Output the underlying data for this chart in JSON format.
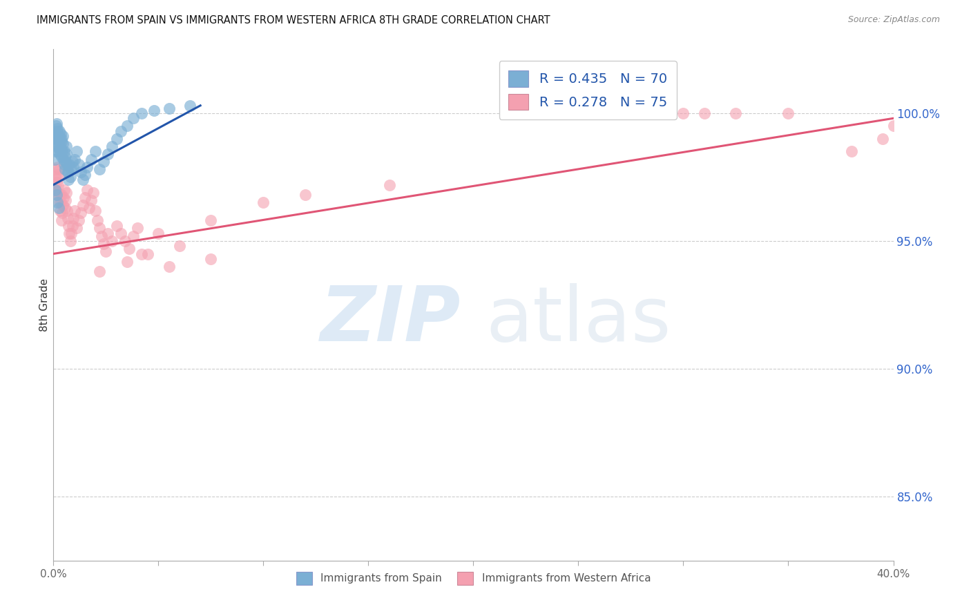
{
  "title": "IMMIGRANTS FROM SPAIN VS IMMIGRANTS FROM WESTERN AFRICA 8TH GRADE CORRELATION CHART",
  "source": "Source: ZipAtlas.com",
  "ylabel": "8th Grade",
  "ytick_values": [
    85.0,
    90.0,
    95.0,
    100.0
  ],
  "xlim_min": 0.0,
  "xlim_max": 40.0,
  "ylim_min": 82.5,
  "ylim_max": 102.5,
  "legend_blue_label": "R = 0.435   N = 70",
  "legend_pink_label": "R = 0.278   N = 75",
  "legend_bottom_blue": "Immigrants from Spain",
  "legend_bottom_pink": "Immigrants from Western Africa",
  "blue_color": "#7BAFD4",
  "pink_color": "#F4A0B0",
  "blue_line_color": "#2255AA",
  "pink_line_color": "#E05575",
  "ytick_color": "#3366CC",
  "blue_line_x0": 0.0,
  "blue_line_x1": 7.0,
  "blue_line_y0": 97.2,
  "blue_line_y1": 100.3,
  "pink_line_x0": 0.0,
  "pink_line_x1": 40.0,
  "pink_line_y0": 94.5,
  "pink_line_y1": 99.8,
  "blue_scatter_x": [
    0.05,
    0.08,
    0.1,
    0.12,
    0.13,
    0.15,
    0.15,
    0.17,
    0.18,
    0.2,
    0.2,
    0.22,
    0.23,
    0.25,
    0.27,
    0.28,
    0.3,
    0.3,
    0.32,
    0.33,
    0.35,
    0.37,
    0.38,
    0.4,
    0.4,
    0.42,
    0.45,
    0.45,
    0.48,
    0.5,
    0.52,
    0.55,
    0.55,
    0.58,
    0.6,
    0.62,
    0.65,
    0.68,
    0.7,
    0.72,
    0.75,
    0.8,
    0.85,
    0.9,
    0.95,
    1.0,
    1.1,
    1.2,
    1.3,
    1.4,
    1.5,
    1.6,
    1.8,
    2.0,
    2.2,
    2.4,
    2.6,
    2.8,
    3.0,
    3.2,
    3.5,
    3.8,
    4.2,
    4.8,
    5.5,
    6.5,
    0.1,
    0.15,
    0.2,
    0.25
  ],
  "blue_scatter_y": [
    98.2,
    98.5,
    99.0,
    99.2,
    99.5,
    99.6,
    99.3,
    99.1,
    98.9,
    99.4,
    98.7,
    99.0,
    98.5,
    98.8,
    99.1,
    99.3,
    98.6,
    99.0,
    98.4,
    98.7,
    99.2,
    98.9,
    98.6,
    98.3,
    99.0,
    98.5,
    98.8,
    99.1,
    98.2,
    98.5,
    98.0,
    98.3,
    97.8,
    98.1,
    98.4,
    98.7,
    98.0,
    97.7,
    97.4,
    97.7,
    98.0,
    97.5,
    97.8,
    98.1,
    97.9,
    98.2,
    98.5,
    98.0,
    97.7,
    97.4,
    97.6,
    97.9,
    98.2,
    98.5,
    97.8,
    98.1,
    98.4,
    98.7,
    99.0,
    99.3,
    99.5,
    99.8,
    100.0,
    100.1,
    100.2,
    100.3,
    97.0,
    96.8,
    96.5,
    96.3
  ],
  "pink_scatter_x": [
    0.05,
    0.08,
    0.1,
    0.12,
    0.15,
    0.17,
    0.18,
    0.2,
    0.22,
    0.25,
    0.27,
    0.28,
    0.3,
    0.32,
    0.35,
    0.37,
    0.4,
    0.42,
    0.45,
    0.48,
    0.5,
    0.55,
    0.58,
    0.6,
    0.65,
    0.68,
    0.7,
    0.75,
    0.8,
    0.85,
    0.9,
    0.95,
    1.0,
    1.1,
    1.2,
    1.3,
    1.4,
    1.5,
    1.6,
    1.7,
    1.8,
    1.9,
    2.0,
    2.1,
    2.2,
    2.3,
    2.4,
    2.5,
    2.6,
    2.8,
    3.0,
    3.2,
    3.4,
    3.6,
    3.8,
    4.0,
    4.5,
    5.0,
    6.0,
    7.5,
    2.2,
    3.5,
    4.2,
    5.5,
    7.5,
    10.0,
    12.0,
    16.0,
    30.0,
    31.0,
    32.5,
    35.0,
    38.0,
    39.5,
    40.0
  ],
  "pink_scatter_y": [
    97.2,
    97.5,
    97.8,
    97.0,
    96.8,
    97.3,
    97.6,
    97.9,
    97.2,
    97.5,
    97.8,
    96.5,
    96.8,
    96.2,
    96.5,
    96.8,
    95.8,
    96.1,
    96.4,
    96.7,
    97.0,
    96.3,
    96.6,
    96.9,
    96.2,
    95.9,
    95.6,
    95.3,
    95.0,
    95.3,
    95.6,
    95.9,
    96.2,
    95.5,
    95.8,
    96.1,
    96.4,
    96.7,
    97.0,
    96.3,
    96.6,
    96.9,
    96.2,
    95.8,
    95.5,
    95.2,
    94.9,
    94.6,
    95.3,
    95.0,
    95.6,
    95.3,
    95.0,
    94.7,
    95.2,
    95.5,
    94.5,
    95.3,
    94.8,
    95.8,
    93.8,
    94.2,
    94.5,
    94.0,
    94.3,
    96.5,
    96.8,
    97.2,
    100.0,
    100.0,
    100.0,
    100.0,
    98.5,
    99.0,
    99.5
  ]
}
